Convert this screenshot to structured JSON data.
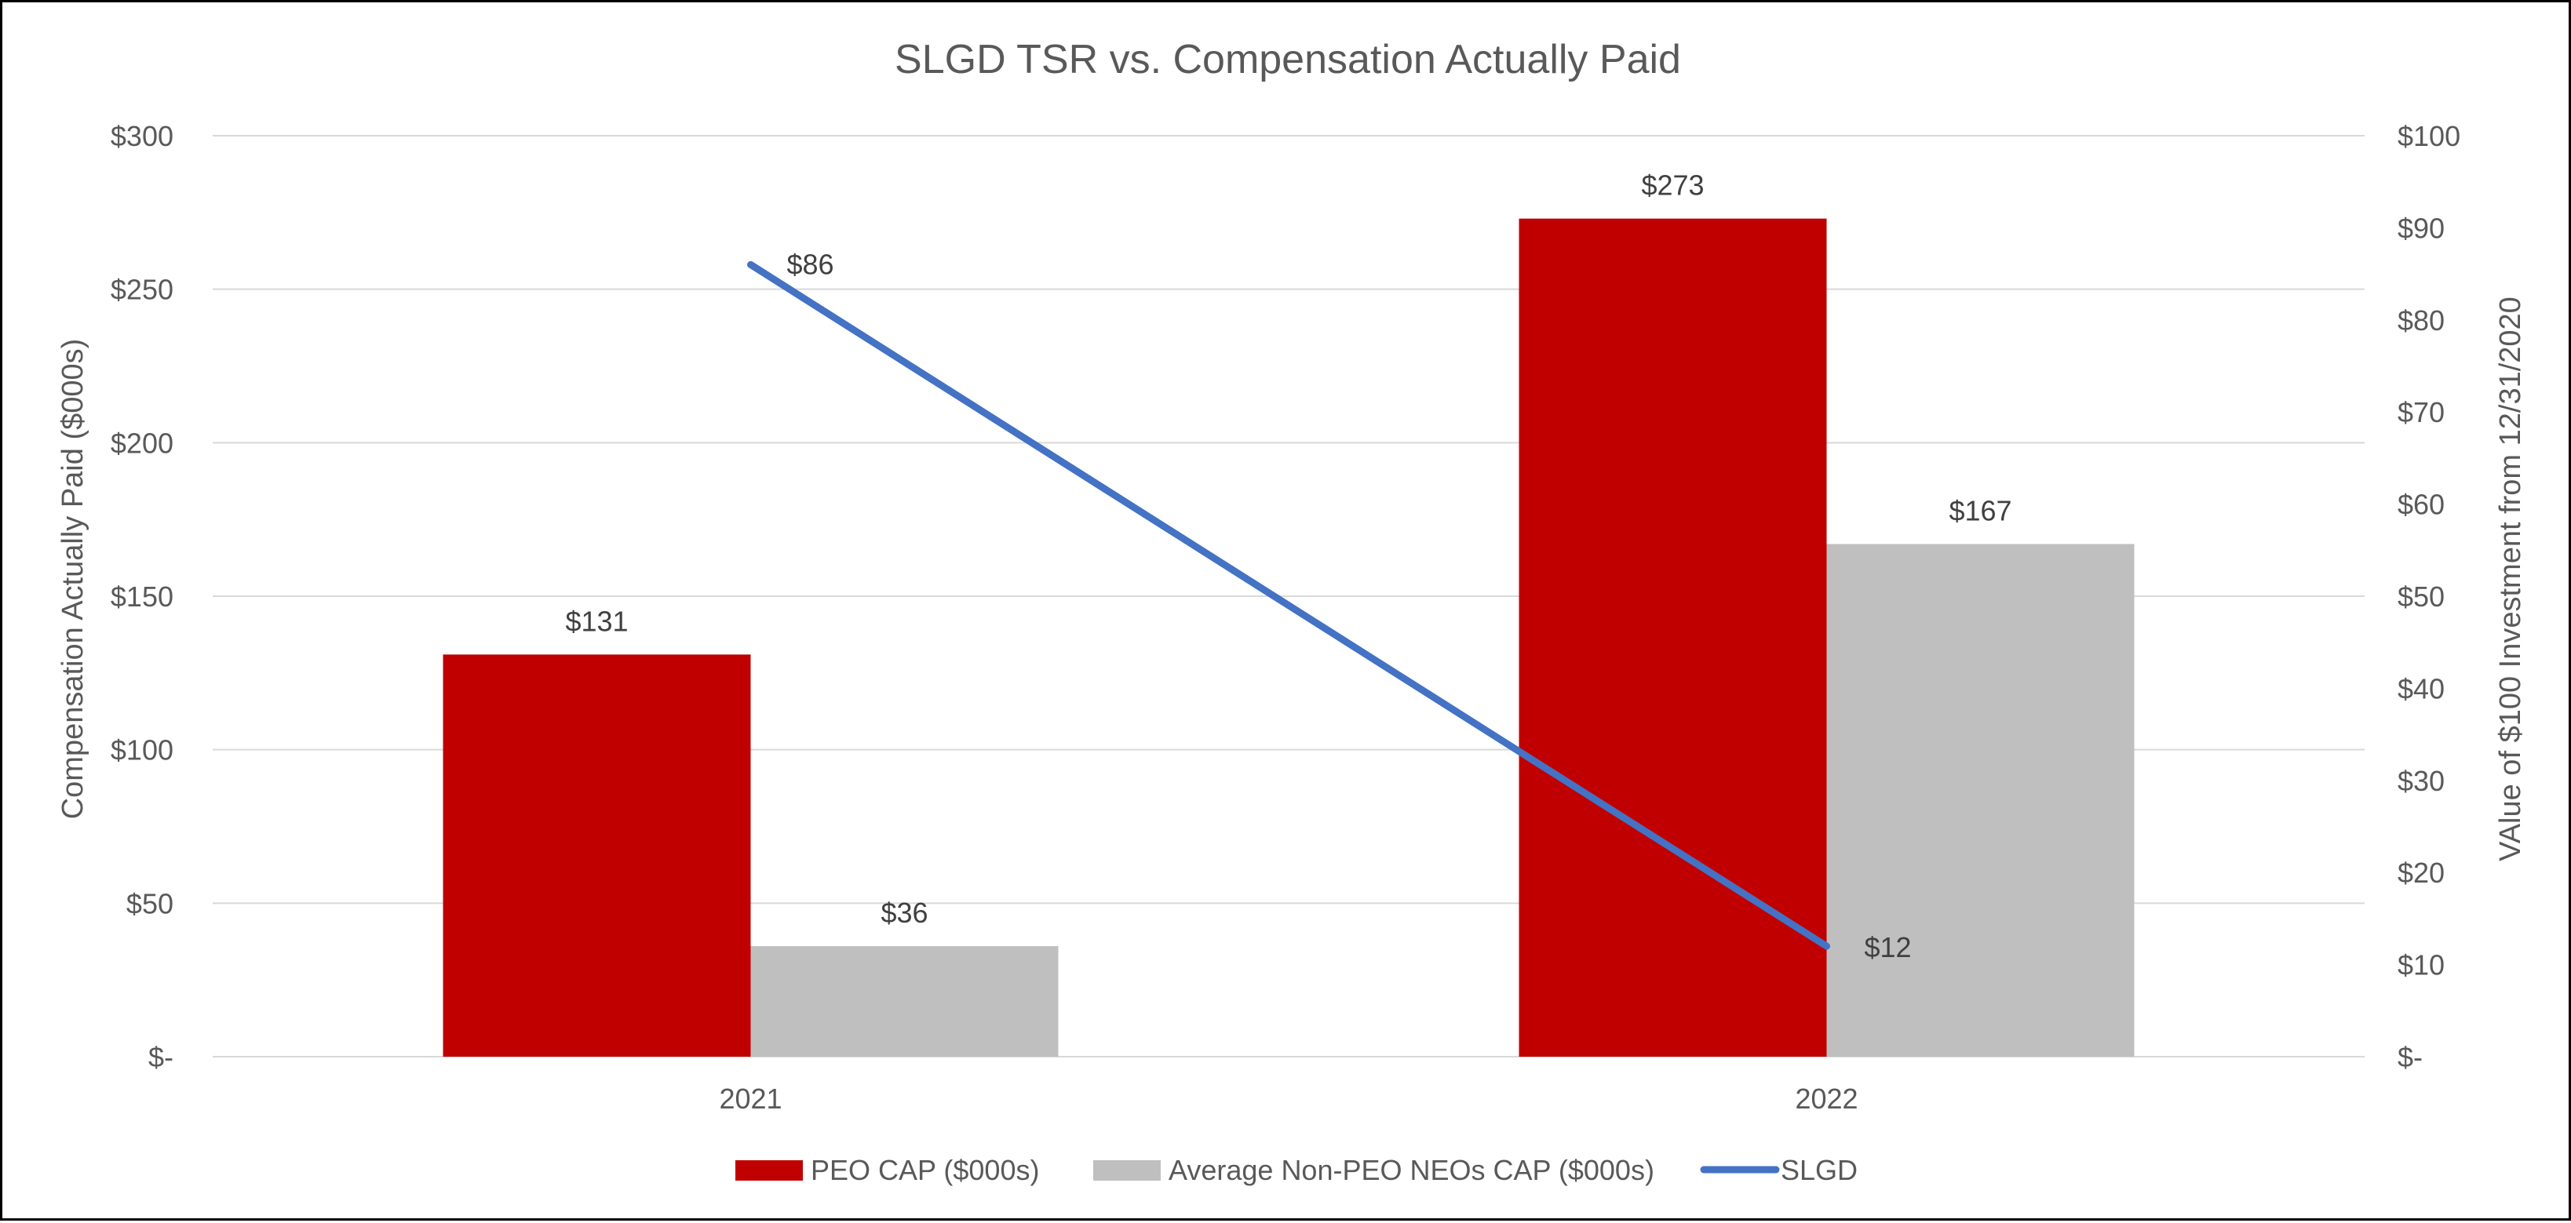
{
  "chart_data": {
    "type": "bar",
    "title": "SLGD TSR vs. Compensation Actually Paid",
    "categories": [
      "2021",
      "2022"
    ],
    "ylabel": "Compensation Actually Paid ($000s)",
    "y2label": "VAlue of $100 Investment from 12/31/2020",
    "ylim": [
      0,
      300
    ],
    "y2lim": [
      0,
      100
    ],
    "yticks": [
      {
        "value": 0,
        "label": "$-"
      },
      {
        "value": 50,
        "label": "$50"
      },
      {
        "value": 100,
        "label": "$100"
      },
      {
        "value": 150,
        "label": "$150"
      },
      {
        "value": 200,
        "label": "$200"
      },
      {
        "value": 250,
        "label": "$250"
      },
      {
        "value": 300,
        "label": "$300"
      }
    ],
    "y2ticks": [
      {
        "value": 0,
        "label": "$-"
      },
      {
        "value": 10,
        "label": "$10"
      },
      {
        "value": 20,
        "label": "$20"
      },
      {
        "value": 30,
        "label": "$30"
      },
      {
        "value": 40,
        "label": "$40"
      },
      {
        "value": 50,
        "label": "$50"
      },
      {
        "value": 60,
        "label": "$60"
      },
      {
        "value": 70,
        "label": "$70"
      },
      {
        "value": 80,
        "label": "$80"
      },
      {
        "value": 90,
        "label": "$90"
      },
      {
        "value": 100,
        "label": "$100"
      }
    ],
    "grid": true,
    "legend_position": "bottom",
    "series": [
      {
        "name": "PEO CAP ($000s)",
        "kind": "bar",
        "axis": "left",
        "color": "#c00000",
        "values": [
          131,
          273
        ],
        "labels": [
          "$131",
          "$273"
        ]
      },
      {
        "name": "Average Non-PEO NEOs CAP ($000s)",
        "kind": "bar",
        "axis": "left",
        "color": "#bfbfbf",
        "values": [
          36,
          167
        ],
        "labels": [
          "$36",
          "$167"
        ]
      },
      {
        "name": "SLGD",
        "kind": "line",
        "axis": "right",
        "color": "#4472c4",
        "values": [
          86,
          12
        ],
        "labels": [
          "$86",
          "$12"
        ]
      }
    ]
  },
  "colors": {
    "text": "#595959",
    "label": "#404040",
    "grid": "#d9d9d9",
    "border": "#000000"
  }
}
